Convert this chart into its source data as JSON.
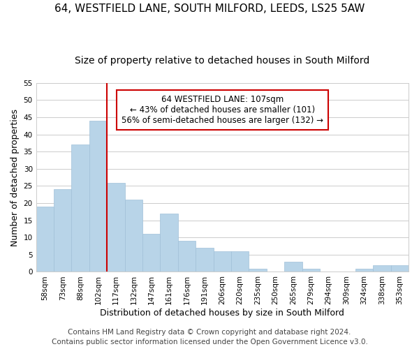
{
  "title": "64, WESTFIELD LANE, SOUTH MILFORD, LEEDS, LS25 5AW",
  "subtitle": "Size of property relative to detached houses in South Milford",
  "xlabel": "Distribution of detached houses by size in South Milford",
  "ylabel": "Number of detached properties",
  "bar_color": "#b8d4e8",
  "bar_edge_color": "#a0c0d8",
  "categories": [
    "58sqm",
    "73sqm",
    "88sqm",
    "102sqm",
    "117sqm",
    "132sqm",
    "147sqm",
    "161sqm",
    "176sqm",
    "191sqm",
    "206sqm",
    "220sqm",
    "235sqm",
    "250sqm",
    "265sqm",
    "279sqm",
    "294sqm",
    "309sqm",
    "324sqm",
    "338sqm",
    "353sqm"
  ],
  "values": [
    19,
    24,
    37,
    44,
    26,
    21,
    11,
    17,
    9,
    7,
    6,
    6,
    1,
    0,
    3,
    1,
    0,
    0,
    1,
    2,
    2
  ],
  "ylim": [
    0,
    55
  ],
  "yticks": [
    0,
    5,
    10,
    15,
    20,
    25,
    30,
    35,
    40,
    45,
    50,
    55
  ],
  "red_line_x": 3.5,
  "annotation_line1": "64 WESTFIELD LANE: 107sqm",
  "annotation_line2": "← 43% of detached houses are smaller (101)",
  "annotation_line3": "56% of semi-detached houses are larger (132) →",
  "annotation_box_color": "#ffffff",
  "annotation_box_edge_color": "#cc0000",
  "red_line_color": "#cc0000",
  "footer_line1": "Contains HM Land Registry data © Crown copyright and database right 2024.",
  "footer_line2": "Contains public sector information licensed under the Open Government Licence v3.0.",
  "background_color": "#ffffff",
  "grid_color": "#cccccc",
  "title_fontsize": 11,
  "subtitle_fontsize": 10,
  "axis_label_fontsize": 9,
  "tick_fontsize": 7.5,
  "annotation_fontsize": 8.5,
  "footer_fontsize": 7.5
}
